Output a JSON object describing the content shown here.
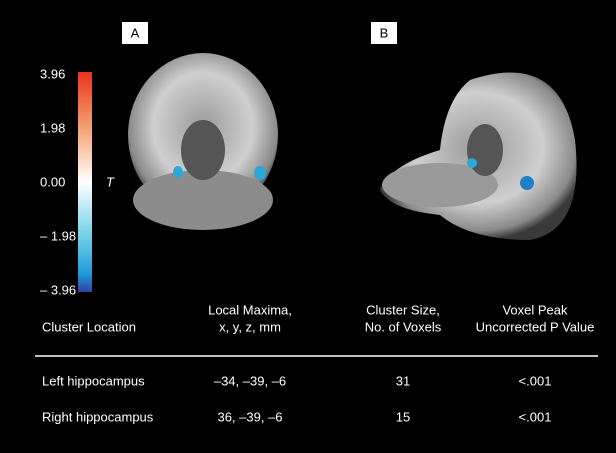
{
  "panels": [
    "A",
    "B"
  ],
  "colorbar": {
    "label": "T",
    "ticks": [
      "3.96",
      "1.98",
      "0.00",
      "– 1.98",
      "– 3.96"
    ]
  },
  "table": {
    "headers": [
      [
        "Cluster Location"
      ],
      [
        "Local Maxima,",
        "x, y, z, mm"
      ],
      [
        "Cluster Size,",
        "No. of Voxels"
      ],
      [
        "Voxel Peak",
        "Uncorrected P Value"
      ]
    ],
    "rows": [
      [
        "Left hippocampus",
        "–34, –39, –6",
        "31",
        "<.001"
      ],
      [
        "Right hippocampus",
        "36, –39, –6",
        "15",
        "<.001"
      ]
    ]
  }
}
